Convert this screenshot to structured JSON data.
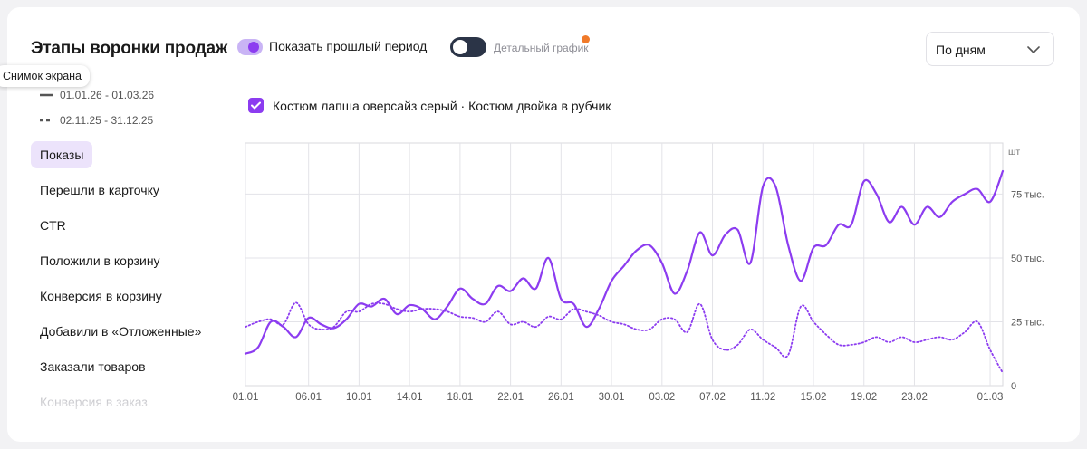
{
  "header": {
    "title": "Этапы воронки продаж",
    "toggle_prev_label": "Показать прошлый период",
    "toggle_prev_on": true,
    "toggle_detail_label": "Детальный график",
    "toggle_detail_on": false,
    "period_select": "По дням"
  },
  "tooltip": "Снимок экрана",
  "legend": {
    "current": "01.01.26 - 01.03.26",
    "previous": "02.11.25 - 31.12.25"
  },
  "product_filter": "Костюм лапша оверсайз серый · Костюм двойка в рубчик",
  "metrics": [
    "Показы",
    "Перешли в карточку",
    "CTR",
    "Положили в корзину",
    "Конверсия в корзину",
    "Добавили в «Отложенные»",
    "Заказали товаров",
    "Конверсия в заказ"
  ],
  "colors": {
    "accent": "#8c3cf0",
    "accent_light": "#ece3fb",
    "toggle_dark": "#2b3447",
    "badge": "#f07a2a"
  },
  "chart_data": {
    "type": "line",
    "y_unit": "шт",
    "ylim": [
      0,
      95000
    ],
    "y_ticks": [
      0,
      25000,
      50000,
      75000
    ],
    "y_tick_labels": [
      "0",
      "25 тыс.",
      "50 тыс.",
      "75 тыс."
    ],
    "x_tick_labels": [
      "01.01",
      "06.01",
      "10.01",
      "14.01",
      "18.01",
      "22.01",
      "26.01",
      "30.01",
      "03.02",
      "07.02",
      "11.02",
      "15.02",
      "19.02",
      "23.02",
      "01.03"
    ],
    "x_tick_index": [
      0,
      5,
      9,
      13,
      17,
      21,
      25,
      29,
      33,
      37,
      41,
      45,
      49,
      53,
      59
    ],
    "grid": true,
    "series": [
      {
        "line": "solid",
        "values": [
          12500,
          15000,
          25000,
          23000,
          19000,
          26500,
          24000,
          22500,
          26000,
          32000,
          31000,
          34000,
          28000,
          31500,
          30000,
          26000,
          31000,
          38000,
          34000,
          32000,
          39000,
          37000,
          42000,
          38000,
          50000,
          34000,
          32000,
          23000,
          30000,
          41000,
          47000,
          53000,
          55000,
          48000,
          36000,
          45000,
          60000,
          51000,
          59000,
          61000,
          48000,
          78000,
          78000,
          55000,
          41000,
          54000,
          55000,
          63000,
          63000,
          80000,
          75000,
          64000,
          70000,
          63000,
          70000,
          66000,
          72000,
          75000,
          77000,
          72000,
          84000
        ]
      },
      {
        "line": "dotted",
        "values": [
          23000,
          25000,
          26000,
          24000,
          32500,
          24000,
          22000,
          23000,
          29000,
          29000,
          32000,
          32000,
          30000,
          29000,
          30000,
          30000,
          29000,
          27000,
          26500,
          25000,
          29000,
          24000,
          25000,
          23000,
          27000,
          26000,
          30000,
          29000,
          27500,
          25000,
          24000,
          22000,
          22000,
          26000,
          26000,
          21000,
          32000,
          18000,
          14000,
          16000,
          22000,
          18000,
          15000,
          12000,
          31000,
          25000,
          20000,
          16000,
          16000,
          17000,
          19000,
          17000,
          19000,
          17000,
          18000,
          19000,
          18000,
          21000,
          25000,
          14000,
          5000
        ]
      }
    ]
  }
}
